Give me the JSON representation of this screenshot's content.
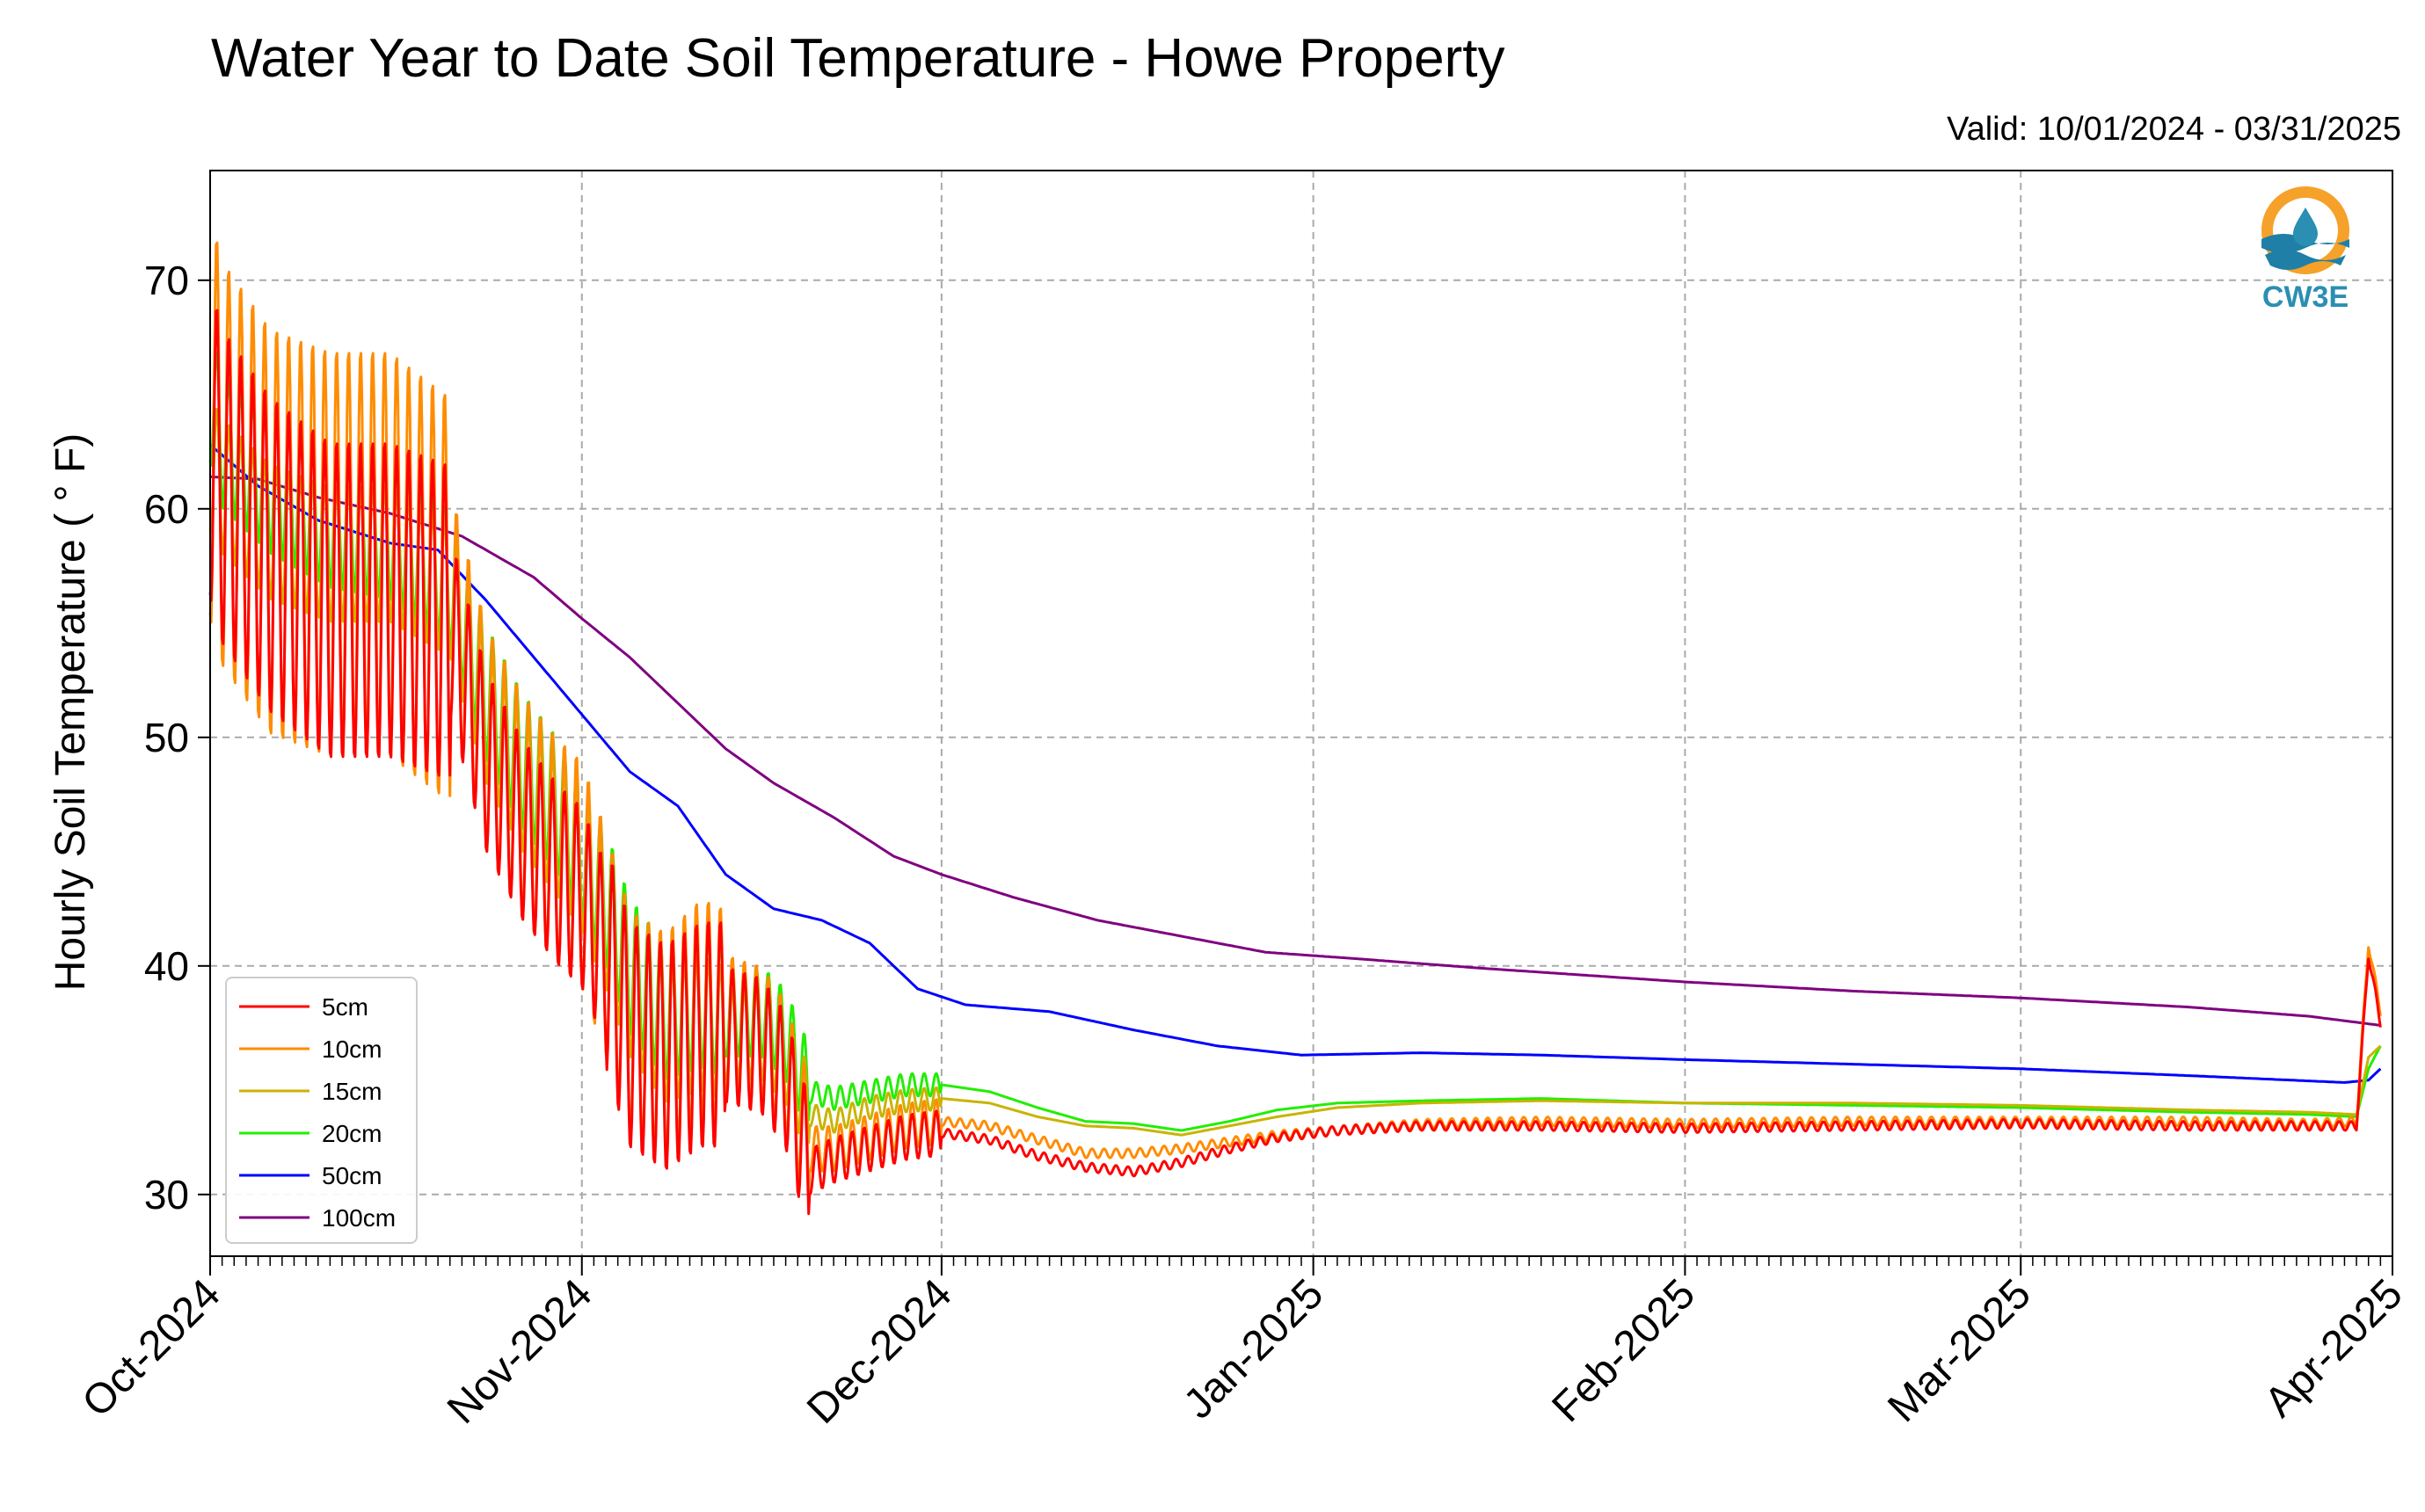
{
  "title": "Water Year to Date Soil Temperature - Howe Property",
  "valid_range": "Valid: 10/01/2024 - 03/31/2025",
  "logo_text": "CW3E",
  "chart_data": {
    "type": "line",
    "title": "Water Year to Date Soil Temperature - Howe Property",
    "subtitle": "Valid: 10/01/2024 - 03/31/2025",
    "xlabel": "",
    "ylabel": "Hourly Soil Temperature ( ° F)",
    "x_ticks": [
      "Oct-2024",
      "Nov-2024",
      "Dec-2024",
      "Jan-2025",
      "Feb-2025",
      "Mar-2025",
      "Apr-2025"
    ],
    "xlim": [
      "2024-10-01",
      "2025-04-01"
    ],
    "ylim": [
      27.3,
      74.8
    ],
    "y_ticks": [
      30,
      40,
      50,
      60,
      70
    ],
    "grid": true,
    "legend_position": "lower-left",
    "series": [
      {
        "name": "5cm",
        "color": "#ff0000",
        "diurnal_days": [
          [
            "2024-10-01",
            7
          ],
          [
            "2024-10-21",
            4
          ],
          [
            "2024-11-03",
            5
          ],
          [
            "2024-11-13",
            3
          ],
          [
            "2024-11-20",
            1
          ],
          [
            "2024-12-01",
            0.2
          ]
        ],
        "points": [
          [
            "2024-10-01",
            63
          ],
          [
            "2024-10-02",
            61
          ],
          [
            "2024-10-06",
            58
          ],
          [
            "2024-10-11",
            56
          ],
          [
            "2024-10-16",
            56
          ],
          [
            "2024-10-21",
            55
          ],
          [
            "2024-10-24",
            49
          ],
          [
            "2024-10-27",
            46
          ],
          [
            "2024-10-30",
            44
          ],
          [
            "2024-11-01",
            43
          ],
          [
            "2024-11-03",
            40.5
          ],
          [
            "2024-11-05",
            37
          ],
          [
            "2024-11-08",
            36
          ],
          [
            "2024-11-11",
            37
          ],
          [
            "2024-11-13",
            37
          ],
          [
            "2024-11-16",
            36.5
          ],
          [
            "2024-11-18",
            35
          ],
          [
            "2024-11-20",
            31
          ],
          [
            "2024-11-22",
            31.5
          ],
          [
            "2024-11-25",
            32
          ],
          [
            "2024-11-28",
            32.5
          ],
          [
            "2024-12-01",
            32.7
          ],
          [
            "2024-12-05",
            32.4
          ],
          [
            "2024-12-09",
            31.7
          ],
          [
            "2024-12-13",
            31.2
          ],
          [
            "2024-12-17",
            31.0
          ],
          [
            "2024-12-21",
            31.4
          ],
          [
            "2024-12-25",
            32.0
          ],
          [
            "2024-12-29",
            32.5
          ],
          [
            "2025-01-03",
            32.8
          ],
          [
            "2025-01-10",
            33.0
          ],
          [
            "2025-01-20",
            33.0
          ],
          [
            "2025-02-01",
            32.9
          ],
          [
            "2025-02-15",
            33.0
          ],
          [
            "2025-03-01",
            33.1
          ],
          [
            "2025-03-15",
            33.0
          ],
          [
            "2025-03-25",
            33.0
          ],
          [
            "2025-03-29",
            33.0
          ],
          [
            "2025-03-30",
            40.5
          ],
          [
            "2025-03-31",
            37.5
          ]
        ]
      },
      {
        "name": "10cm",
        "color": "#ff8c00",
        "diurnal_days": [
          [
            "2024-10-01",
            9
          ],
          [
            "2024-10-21",
            5
          ],
          [
            "2024-11-03",
            5
          ],
          [
            "2024-11-13",
            3
          ],
          [
            "2024-11-20",
            1
          ],
          [
            "2024-12-01",
            0.2
          ]
        ],
        "points": [
          [
            "2024-10-01",
            64
          ],
          [
            "2024-10-02",
            62
          ],
          [
            "2024-10-06",
            59
          ],
          [
            "2024-10-11",
            58
          ],
          [
            "2024-10-16",
            58
          ],
          [
            "2024-10-21",
            56
          ],
          [
            "2024-10-24",
            50
          ],
          [
            "2024-10-27",
            47
          ],
          [
            "2024-10-30",
            45
          ],
          [
            "2024-11-01",
            44
          ],
          [
            "2024-11-03",
            41
          ],
          [
            "2024-11-05",
            37.5
          ],
          [
            "2024-11-08",
            36.5
          ],
          [
            "2024-11-11",
            38
          ],
          [
            "2024-11-13",
            37.5
          ],
          [
            "2024-11-16",
            37
          ],
          [
            "2024-11-18",
            35.5
          ],
          [
            "2024-11-20",
            32
          ],
          [
            "2024-11-22",
            32
          ],
          [
            "2024-11-25",
            32.5
          ],
          [
            "2024-11-28",
            33
          ],
          [
            "2024-12-01",
            33.2
          ],
          [
            "2024-12-05",
            33.0
          ],
          [
            "2024-12-09",
            32.4
          ],
          [
            "2024-12-13",
            31.8
          ],
          [
            "2024-12-17",
            31.8
          ],
          [
            "2024-12-21",
            32.0
          ],
          [
            "2024-12-25",
            32.3
          ],
          [
            "2024-12-29",
            32.6
          ],
          [
            "2025-01-03",
            32.8
          ],
          [
            "2025-01-10",
            33.1
          ],
          [
            "2025-01-20",
            33.2
          ],
          [
            "2025-02-01",
            33.1
          ],
          [
            "2025-02-15",
            33.2
          ],
          [
            "2025-03-01",
            33.2
          ],
          [
            "2025-03-15",
            33.2
          ],
          [
            "2025-03-25",
            33.1
          ],
          [
            "2025-03-29",
            33.2
          ],
          [
            "2025-03-30",
            41
          ],
          [
            "2025-03-31",
            38
          ]
        ]
      },
      {
        "name": "15cm",
        "color": "#c8b400",
        "diurnal_days": [
          [
            "2024-10-01",
            3
          ],
          [
            "2024-10-21",
            3
          ],
          [
            "2024-11-03",
            3
          ],
          [
            "2024-11-13",
            2
          ],
          [
            "2024-11-20",
            0.5
          ],
          [
            "2024-12-01",
            0
          ]
        ],
        "points": [
          [
            "2024-10-01",
            62
          ],
          [
            "2024-10-02",
            61
          ],
          [
            "2024-10-06",
            59
          ],
          [
            "2024-10-11",
            58
          ],
          [
            "2024-10-16",
            58
          ],
          [
            "2024-10-21",
            56.5
          ],
          [
            "2024-10-24",
            51
          ],
          [
            "2024-10-27",
            48
          ],
          [
            "2024-10-30",
            46
          ],
          [
            "2024-11-01",
            44.5
          ],
          [
            "2024-11-03",
            42
          ],
          [
            "2024-11-05",
            39
          ],
          [
            "2024-11-08",
            37
          ],
          [
            "2024-11-11",
            37.5
          ],
          [
            "2024-11-13",
            37
          ],
          [
            "2024-11-16",
            37
          ],
          [
            "2024-11-18",
            36
          ],
          [
            "2024-11-20",
            33.5
          ],
          [
            "2024-11-22",
            33.2
          ],
          [
            "2024-11-25",
            33.8
          ],
          [
            "2024-11-28",
            34.1
          ],
          [
            "2024-12-01",
            34.2
          ],
          [
            "2024-12-05",
            34.0
          ],
          [
            "2024-12-09",
            33.4
          ],
          [
            "2024-12-13",
            33.0
          ],
          [
            "2024-12-17",
            32.9
          ],
          [
            "2024-12-21",
            32.6
          ],
          [
            "2024-12-25",
            33.0
          ],
          [
            "2024-12-29",
            33.4
          ],
          [
            "2025-01-03",
            33.8
          ],
          [
            "2025-01-10",
            34.0
          ],
          [
            "2025-01-20",
            34.1
          ],
          [
            "2025-02-01",
            34.0
          ],
          [
            "2025-02-15",
            34.0
          ],
          [
            "2025-03-01",
            33.9
          ],
          [
            "2025-03-15",
            33.7
          ],
          [
            "2025-03-25",
            33.6
          ],
          [
            "2025-03-29",
            33.5
          ],
          [
            "2025-03-30",
            36
          ],
          [
            "2025-03-31",
            36.5
          ]
        ]
      },
      {
        "name": "20cm",
        "color": "#22ee00",
        "diurnal_days": [
          [
            "2024-10-01",
            3
          ],
          [
            "2024-10-21",
            3
          ],
          [
            "2024-11-03",
            3
          ],
          [
            "2024-11-13",
            2
          ],
          [
            "2024-11-20",
            0.5
          ],
          [
            "2024-12-01",
            0
          ]
        ],
        "points": [
          [
            "2024-10-01",
            65
          ],
          [
            "2024-10-02",
            63
          ],
          [
            "2024-10-06",
            61
          ],
          [
            "2024-10-11",
            59.5
          ],
          [
            "2024-10-16",
            59
          ],
          [
            "2024-10-21",
            57
          ],
          [
            "2024-10-24",
            52
          ],
          [
            "2024-10-27",
            49
          ],
          [
            "2024-10-30",
            47
          ],
          [
            "2024-11-01",
            45
          ],
          [
            "2024-11-03",
            43
          ],
          [
            "2024-11-05",
            40
          ],
          [
            "2024-11-08",
            38
          ],
          [
            "2024-11-11",
            38.5
          ],
          [
            "2024-11-13",
            38
          ],
          [
            "2024-11-16",
            38
          ],
          [
            "2024-11-18",
            37
          ],
          [
            "2024-11-20",
            34.5
          ],
          [
            "2024-11-22",
            34.2
          ],
          [
            "2024-11-25",
            34.5
          ],
          [
            "2024-11-28",
            34.8
          ],
          [
            "2024-12-01",
            34.8
          ],
          [
            "2024-12-05",
            34.5
          ],
          [
            "2024-12-09",
            33.8
          ],
          [
            "2024-12-13",
            33.2
          ],
          [
            "2024-12-17",
            33.1
          ],
          [
            "2024-12-21",
            32.8
          ],
          [
            "2024-12-25",
            33.2
          ],
          [
            "2024-12-29",
            33.7
          ],
          [
            "2025-01-03",
            34.0
          ],
          [
            "2025-01-10",
            34.1
          ],
          [
            "2025-01-20",
            34.2
          ],
          [
            "2025-02-01",
            34.0
          ],
          [
            "2025-02-15",
            33.9
          ],
          [
            "2025-03-01",
            33.8
          ],
          [
            "2025-03-15",
            33.6
          ],
          [
            "2025-03-25",
            33.5
          ],
          [
            "2025-03-29",
            33.4
          ],
          [
            "2025-03-30",
            35.5
          ],
          [
            "2025-03-31",
            36.5
          ]
        ]
      },
      {
        "name": "50cm",
        "color": "#0000ff",
        "diurnal_days": [],
        "points": [
          [
            "2024-10-01",
            62.8
          ],
          [
            "2024-10-05",
            61
          ],
          [
            "2024-10-10",
            59.5
          ],
          [
            "2024-10-16",
            58.5
          ],
          [
            "2024-10-20",
            58.2
          ],
          [
            "2024-10-24",
            56
          ],
          [
            "2024-10-28",
            53.5
          ],
          [
            "2024-11-01",
            51
          ],
          [
            "2024-11-05",
            48.5
          ],
          [
            "2024-11-09",
            47
          ],
          [
            "2024-11-13",
            44
          ],
          [
            "2024-11-17",
            42.5
          ],
          [
            "2024-11-21",
            42
          ],
          [
            "2024-11-25",
            41
          ],
          [
            "2024-11-29",
            39
          ],
          [
            "2024-12-03",
            38.3
          ],
          [
            "2024-12-10",
            38
          ],
          [
            "2024-12-17",
            37.2
          ],
          [
            "2024-12-24",
            36.5
          ],
          [
            "2024-12-31",
            36.1
          ],
          [
            "2025-01-10",
            36.2
          ],
          [
            "2025-01-20",
            36.1
          ],
          [
            "2025-02-01",
            35.9
          ],
          [
            "2025-02-15",
            35.7
          ],
          [
            "2025-03-01",
            35.5
          ],
          [
            "2025-03-15",
            35.2
          ],
          [
            "2025-03-28",
            34.9
          ],
          [
            "2025-03-30",
            35.0
          ],
          [
            "2025-03-31",
            35.5
          ]
        ]
      },
      {
        "name": "100cm",
        "color": "#800080",
        "diurnal_days": [],
        "points": [
          [
            "2024-10-01",
            61.4
          ],
          [
            "2024-10-05",
            61.3
          ],
          [
            "2024-10-10",
            60.5
          ],
          [
            "2024-10-16",
            59.8
          ],
          [
            "2024-10-22",
            58.8
          ],
          [
            "2024-10-28",
            57
          ],
          [
            "2024-11-01",
            55.2
          ],
          [
            "2024-11-05",
            53.5
          ],
          [
            "2024-11-09",
            51.5
          ],
          [
            "2024-11-13",
            49.5
          ],
          [
            "2024-11-17",
            48
          ],
          [
            "2024-11-22",
            46.5
          ],
          [
            "2024-11-27",
            44.8
          ],
          [
            "2024-12-01",
            44
          ],
          [
            "2024-12-07",
            43
          ],
          [
            "2024-12-14",
            42
          ],
          [
            "2024-12-21",
            41.3
          ],
          [
            "2024-12-28",
            40.6
          ],
          [
            "2025-01-05",
            40.3
          ],
          [
            "2025-01-15",
            39.9
          ],
          [
            "2025-02-01",
            39.3
          ],
          [
            "2025-02-15",
            38.9
          ],
          [
            "2025-03-01",
            38.6
          ],
          [
            "2025-03-15",
            38.2
          ],
          [
            "2025-03-25",
            37.8
          ],
          [
            "2025-03-28",
            37.6
          ],
          [
            "2025-03-31",
            37.4
          ]
        ]
      }
    ]
  }
}
